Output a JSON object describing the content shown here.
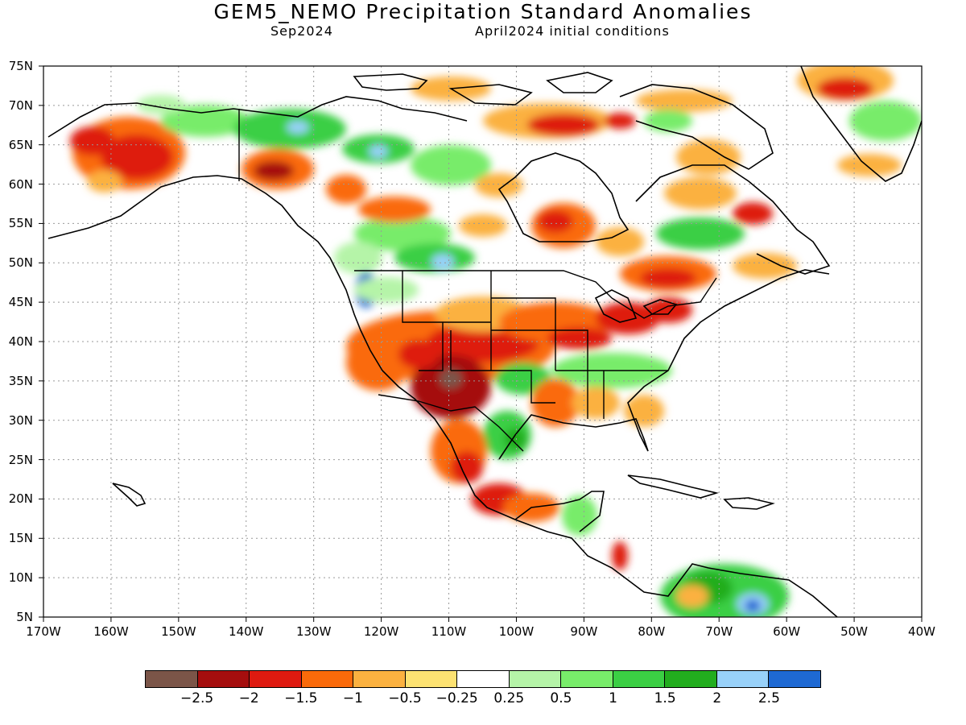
{
  "title": "GEM5_NEMO Precipitation Standard Anomalies",
  "subtitle_left": "Sep2024",
  "subtitle_right": "April2024 initial conditions",
  "map": {
    "projection": "latitude-longitude",
    "lon_range": [
      -170,
      -40
    ],
    "lat_range": [
      5,
      75
    ],
    "gridlines": "dotted",
    "lat_labels": [
      "75N",
      "70N",
      "65N",
      "60N",
      "55N",
      "50N",
      "45N",
      "40N",
      "35N",
      "30N",
      "25N",
      "20N",
      "15N",
      "10N",
      "5N"
    ],
    "lon_labels": [
      "170W",
      "160W",
      "150W",
      "140W",
      "130W",
      "120W",
      "110W",
      "100W",
      "90W",
      "80W",
      "70W",
      "60W",
      "50W",
      "40W"
    ],
    "anomaly_regions": [
      {
        "name": "Alaska west",
        "lon": -155,
        "lat": 62.5,
        "class": "<-2"
      },
      {
        "name": "Yukon / NW Canada",
        "lon": -134,
        "lat": 61,
        "class": "<-2"
      },
      {
        "name": "US Southwest",
        "lon": -109,
        "lat": 35,
        "class": "<-2.5"
      },
      {
        "name": "Colorado / Kansas",
        "lon": -103,
        "lat": 40,
        "class": "<-2"
      },
      {
        "name": "Great Lakes",
        "lon": -82,
        "lat": 43,
        "class": "-2..-1.5"
      },
      {
        "name": "Western Mexico",
        "lon": -106,
        "lat": 25,
        "class": "-2..-1.5"
      },
      {
        "name": "Pacific Northwest",
        "lon": -124,
        "lat": 46,
        "class": ">2.5"
      },
      {
        "name": "Gulf of Mexico west coast",
        "lon": -98,
        "lat": 26,
        "class": "1.5..2"
      },
      {
        "name": "Northern South America",
        "lon": -68,
        "lat": 7,
        "class": ">2"
      },
      {
        "name": "Central Canada",
        "lon": -118,
        "lat": 64,
        "class": "1..1.5"
      }
    ]
  },
  "legend": {
    "colors": [
      "#7b5548",
      "#a50e0e",
      "#de1a10",
      "#fa6a0a",
      "#fbb140",
      "#fde272",
      "#ffffff",
      "#b5f4a8",
      "#78ec6a",
      "#3bcf44",
      "#22ad1e",
      "#98d1f9",
      "#1e69d3"
    ],
    "ticks": [
      "-2.5",
      "-2",
      "-1.5",
      "-1",
      "-0.5",
      "-0.25",
      "0.25",
      "0.5",
      "1",
      "1.5",
      "2",
      "2.5"
    ]
  }
}
